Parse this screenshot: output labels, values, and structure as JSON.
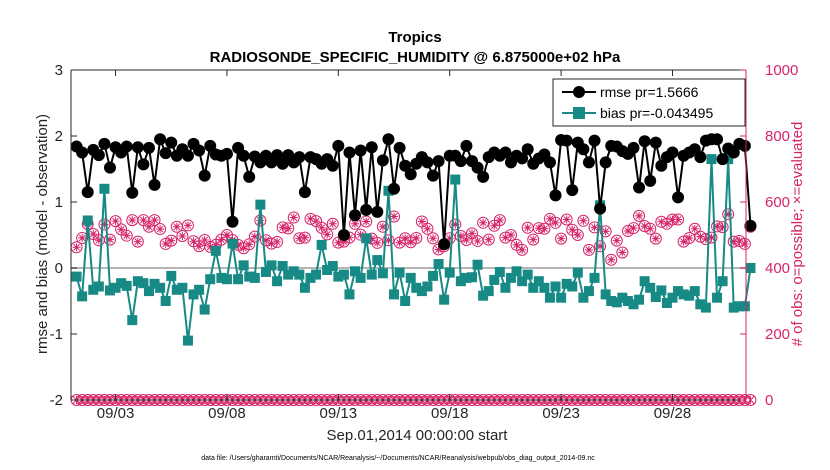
{
  "chart_data": {
    "type": "line",
    "title": "Tropics",
    "subtitle": "RADIOSONDE_SPECIFIC_HUMIDITY @ 6.875000e+02 hPa",
    "xlabel": "Sep.01,2014 00:00:00 start",
    "ylabel": "rmse and bias (model - observation)",
    "ylabel_right": "# of obs: o=possible; ×=evaluated",
    "footnote": "data file: /Users/gharamti/Documents/NCAR/Reanalysis/~/Documents/NCAR/Reanalysis/webpub/obs_diag_output_2014-09.nc",
    "xlim": [
      1.0,
      31.3
    ],
    "ylim": [
      -2,
      3
    ],
    "ylim_right": [
      0,
      1000
    ],
    "x_ticks": [
      3,
      8,
      13,
      18,
      23,
      28
    ],
    "x_tick_labels": [
      "09/03",
      "09/08",
      "09/13",
      "09/18",
      "09/23",
      "09/28"
    ],
    "y_ticks": [
      -2,
      -1,
      0,
      1,
      2,
      3
    ],
    "y_tick_labels": [
      "-2",
      "-1",
      "0",
      "1",
      "2",
      "3"
    ],
    "y_ticks_right": [
      0,
      200,
      400,
      600,
      800,
      1000
    ],
    "y_tick_labels_right": [
      "0",
      "200",
      "400",
      "600",
      "800",
      "1000"
    ],
    "zero_line": 0,
    "colors": {
      "rmse": "#000000",
      "bias": "#178a86",
      "obs": "#d6246a",
      "axis": "#262626",
      "zero_line": "#b5b5b5"
    },
    "legend": {
      "location": "top-right",
      "entries": [
        "rmse pr=1.5666",
        "bias pr=-0.043495"
      ]
    },
    "x_start": 1.25,
    "x_step": 0.25,
    "series": [
      {
        "name": "rmse pr=1.5666",
        "marker": "circle",
        "values": [
          1.84,
          1.75,
          1.15,
          1.79,
          1.71,
          1.88,
          1.52,
          1.83,
          1.75,
          1.84,
          1.14,
          1.83,
          1.57,
          1.82,
          1.26,
          1.95,
          1.74,
          1.9,
          1.7,
          1.8,
          1.7,
          1.88,
          1.78,
          1.4,
          1.85,
          1.72,
          1.7,
          1.73,
          0.7,
          1.82,
          1.7,
          1.38,
          1.69,
          1.6,
          1.7,
          1.6,
          1.71,
          1.58,
          1.71,
          1.6,
          1.68,
          1.15,
          1.68,
          1.65,
          1.58,
          1.65,
          1.55,
          1.85,
          0.5,
          1.75,
          0.8,
          1.78,
          0.88,
          1.83,
          0.85,
          1.63,
          1.95,
          1.2,
          1.82,
          1.55,
          1.42,
          1.58,
          1.68,
          1.6,
          1.4,
          1.62,
          0.36,
          1.7,
          1.7,
          1.62,
          1.85,
          1.62,
          1.52,
          1.38,
          1.68,
          1.75,
          1.7,
          1.75,
          1.6,
          1.7,
          1.66,
          1.8,
          1.58,
          1.66,
          1.72,
          1.6,
          1.1,
          1.94,
          1.93,
          1.18,
          1.9,
          1.8,
          1.6,
          1.93,
          0.9,
          1.6,
          1.85,
          1.84,
          1.77,
          1.73,
          1.82,
          1.22,
          1.92,
          1.32,
          1.9,
          1.55,
          1.68,
          1.75,
          1.07,
          1.7,
          1.75,
          1.8,
          1.68,
          1.93,
          1.95,
          1.95,
          1.65,
          1.81,
          1.75,
          1.88,
          1.85,
          0.64
        ]
      },
      {
        "name": "bias pr=-0.043495",
        "marker": "square",
        "values": [
          -0.13,
          -0.43,
          0.72,
          -0.33,
          -0.28,
          1.2,
          -0.34,
          -0.3,
          -0.23,
          -0.27,
          -0.79,
          -0.2,
          -0.23,
          -0.35,
          -0.24,
          -0.3,
          -0.5,
          -0.12,
          -0.33,
          -0.3,
          -1.1,
          -0.4,
          -0.33,
          -0.63,
          -0.17,
          0.26,
          -0.15,
          -0.17,
          0.37,
          -0.17,
          0.04,
          -0.13,
          -0.15,
          0.96,
          -0.06,
          0.04,
          -0.2,
          0.03,
          -0.1,
          -0.05,
          -0.1,
          -0.3,
          -0.15,
          -0.1,
          0.35,
          -0.03,
          0.03,
          -0.13,
          -0.1,
          -0.4,
          -0.05,
          -0.15,
          0.45,
          -0.1,
          0.12,
          -0.08,
          1.17,
          -0.4,
          -0.07,
          -0.5,
          -0.15,
          -0.3,
          -0.35,
          -0.28,
          -0.12,
          0.06,
          -0.48,
          -0.07,
          1.34,
          -0.2,
          -0.15,
          -0.14,
          0.05,
          -0.42,
          -0.35,
          -0.18,
          -0.06,
          -0.3,
          -0.15,
          -0.05,
          -0.2,
          -0.1,
          -0.3,
          -0.2,
          -0.3,
          -0.45,
          -0.28,
          -0.45,
          -0.24,
          -0.28,
          -0.07,
          -0.45,
          -0.35,
          -0.15,
          0.95,
          -0.4,
          -0.5,
          -0.52,
          -0.45,
          -0.5,
          -0.55,
          -0.48,
          -0.2,
          -0.3,
          -0.44,
          -0.34,
          -0.53,
          -0.45,
          -0.35,
          -0.4,
          -0.42,
          -0.35,
          -0.55,
          -0.6,
          1.65,
          -0.45,
          -0.2,
          1.65,
          -0.6,
          -0.58,
          -0.58,
          0.0
        ]
      },
      {
        "name": "possible obs",
        "marker": "open-circle-star",
        "axis": "right",
        "values": [
          463,
          491,
          533,
          503,
          484,
          532,
          486,
          542,
          517,
          498,
          545,
          480,
          545,
          525,
          545,
          518,
          473,
          483,
          525,
          497,
          529,
          481,
          466,
          485,
          464,
          470,
          486,
          500,
          485,
          470,
          460,
          472,
          495,
          544,
          484,
          474,
          479,
          523,
          520,
          553,
          490,
          492,
          549,
          542,
          522,
          502,
          534,
          477,
          480,
          492,
          534,
          501,
          541,
          489,
          476,
          525,
          484,
          556,
          477,
          490,
          478,
          491,
          541,
          519,
          490,
          456,
          466,
          490,
          532,
          497,
          485,
          505,
          482,
          537,
          486,
          528,
          545,
          492,
          500,
          470,
          455,
          522,
          486,
          521,
          519,
          549,
          537,
          489,
          547,
          516,
          500,
          543,
          455,
          523,
          466,
          511,
          425,
          483,
          447,
          512,
          521,
          558,
          527,
          519,
          489,
          540,
          534,
          547,
          547,
          480,
          491,
          519,
          495,
          488,
          492,
          526,
          524,
          563,
          480,
          482,
          473,
          525
        ]
      },
      {
        "name": "evaluated obs",
        "marker": "x",
        "axis": "right",
        "values": [
          0,
          0,
          0,
          0,
          0,
          0,
          0,
          0,
          0,
          0,
          0,
          0,
          0,
          0,
          0,
          0,
          0,
          0,
          0,
          0,
          0,
          0,
          0,
          0,
          0,
          0,
          0,
          0,
          0,
          0,
          0,
          0,
          0,
          0,
          0,
          0,
          0,
          0,
          0,
          0,
          0,
          0,
          0,
          0,
          0,
          0,
          0,
          0,
          0,
          0,
          0,
          0,
          0,
          0,
          0,
          0,
          0,
          0,
          0,
          0,
          0,
          0,
          0,
          0,
          0,
          0,
          0,
          0,
          0,
          0,
          0,
          0,
          0,
          0,
          0,
          0,
          0,
          0,
          0,
          0,
          0,
          0,
          0,
          0,
          0,
          0,
          0,
          0,
          0,
          0,
          0,
          0,
          0,
          0,
          0,
          0,
          0,
          0,
          0,
          0,
          0,
          0,
          0,
          0,
          0,
          0,
          0,
          0,
          0,
          0,
          0,
          0,
          0,
          0,
          0,
          0,
          0,
          0,
          0,
          0,
          0,
          0
        ]
      }
    ]
  }
}
